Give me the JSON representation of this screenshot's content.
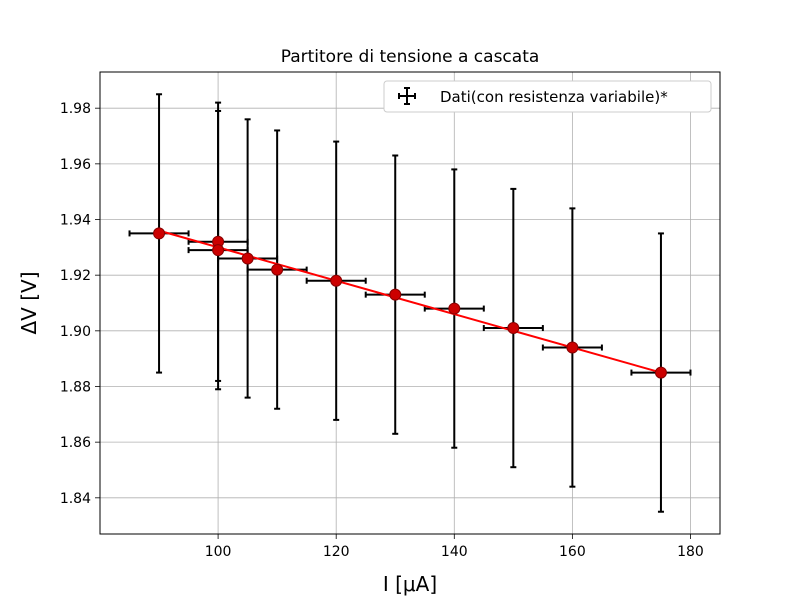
{
  "chart_data": {
    "type": "scatter",
    "title": "Partitore di tensione a cascata",
    "xlabel": "I [μA]",
    "ylabel": "ΔV [V]",
    "xlim": [
      80,
      185
    ],
    "ylim": [
      1.827,
      1.993
    ],
    "xticks": [
      100,
      120,
      140,
      160,
      180
    ],
    "yticks": [
      1.84,
      1.86,
      1.88,
      1.9,
      1.92,
      1.94,
      1.96,
      1.98
    ],
    "xtick_labels": [
      "100",
      "120",
      "140",
      "160",
      "180"
    ],
    "ytick_labels": [
      "1.84",
      "1.86",
      "1.88",
      "1.90",
      "1.92",
      "1.94",
      "1.96",
      "1.98"
    ],
    "grid": true,
    "legend_position": "top-right",
    "series": [
      {
        "name": "Dati(con resistenza variabile)*",
        "marker_color": "#cc0000",
        "errorbar_color": "#000000",
        "x": [
          90,
          100,
          100,
          105,
          110,
          120,
          130,
          140,
          150,
          160,
          175
        ],
        "y": [
          1.935,
          1.932,
          1.929,
          1.926,
          1.922,
          1.918,
          1.913,
          1.908,
          1.901,
          1.894,
          1.885
        ],
        "x_err": [
          5,
          5,
          5,
          5,
          5,
          5,
          5,
          5,
          5,
          5,
          5
        ],
        "y_err": [
          0.05,
          0.05,
          0.05,
          0.05,
          0.05,
          0.05,
          0.05,
          0.05,
          0.05,
          0.05,
          0.05
        ]
      }
    ],
    "fit_line": {
      "color": "#ff0000",
      "x": [
        90,
        175
      ],
      "y": [
        1.936,
        1.885
      ]
    }
  }
}
